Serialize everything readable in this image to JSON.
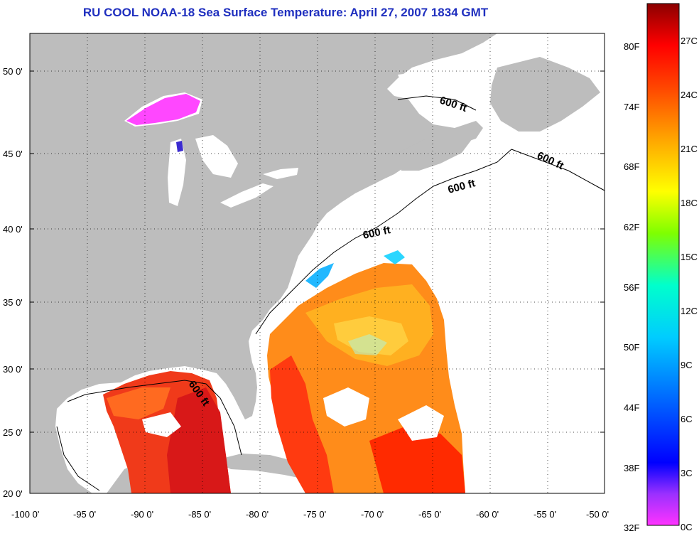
{
  "title": "RU COOL  NOAA-18  Sea Surface Temperature:  April 27, 2007 1834 GMT",
  "lat_labels": [
    "50 0'",
    "45 0'",
    "40 0'",
    "35 0'",
    "30 0'",
    "25 0'",
    "20 0'"
  ],
  "lon_labels": [
    "-100 0'",
    "-95 0'",
    "-90 0'",
    "-85 0'",
    "-80 0'",
    "-75 0'",
    "-70 0'",
    "-65 0'",
    "-60 0'",
    "-55 0'",
    "-50 0'"
  ],
  "depth_label": "600 ft",
  "colorbar": {
    "fahrenheit_labels": [
      "80F",
      "74F",
      "68F",
      "62F",
      "56F",
      "50F",
      "44F",
      "38F",
      "32F"
    ],
    "celsius_labels": [
      "27C",
      "24C",
      "21C",
      "18C",
      "15C",
      "12C",
      "9C",
      "6C",
      "3C",
      "0C"
    ],
    "colors": [
      "#8b0000",
      "#ff0000",
      "#ff8c00",
      "#ffff00",
      "#7fff00",
      "#00ffcc",
      "#00bfff",
      "#0000ff",
      "#8a2be2",
      "#ff33ff"
    ]
  },
  "colors": {
    "land": "#bdbdbd",
    "title": "#1f2fbf",
    "no_data": "#ffffff"
  }
}
